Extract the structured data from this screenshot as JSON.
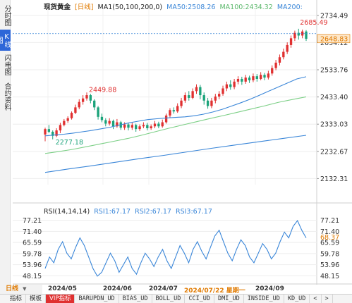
{
  "sidebar": {
    "tabs": [
      {
        "label": "分时图",
        "active": false
      },
      {
        "label": "K线图",
        "active": true
      },
      {
        "label": "闪电图",
        "active": false
      },
      {
        "label": "合约资料",
        "active": false
      }
    ]
  },
  "header": {
    "symbol": "现货黄金",
    "period": "[日线]",
    "ma_label": "MA1(50,100,200,0)",
    "ma50": "MA50:2508.26",
    "ma100": "MA100:2434.32",
    "ma200": "MA200:"
  },
  "colors": {
    "up": "#e03030",
    "down": "#1aa37a",
    "ma50": "#3a86d8",
    "ma100": "#7ccf86",
    "ma200": "#3a86d8",
    "rsi": "#3a86d8",
    "accent": "#e07a00"
  },
  "price_axis": {
    "ticks": [
      "2734.49",
      "2634.12",
      "2533.76",
      "2433.40",
      "2333.03",
      "2232.67",
      "2132.31"
    ],
    "current_price": "2648.83"
  },
  "annotations": {
    "high": "2685.49",
    "mid_high": "2449.88",
    "low": "2277.18"
  },
  "rsi": {
    "label": "RSI(14,14,14)",
    "rsi1": "RSI1:67.17",
    "rsi2": "RSI2:67.17",
    "rsi3": "RSI3:67.17",
    "ticks": [
      "77.21",
      "71.40",
      "65.59",
      "59.78",
      "53.96",
      "48.15"
    ],
    "current": "68.37"
  },
  "date_axis": {
    "labels": [
      "2024/05",
      "2024/06",
      "2024/07",
      "2024/07/22 星期一",
      "2024/09"
    ]
  },
  "period_select": "日线",
  "bottom_tabs": [
    "指标",
    "模板",
    "VIP指标",
    "BARUPDN_UD",
    "BIAS_UD",
    "BOLL_UD",
    "CCI_UD",
    "DMI_UD",
    "INSIDE_UD",
    "KD_UD",
    "<",
    ">"
  ],
  "chart_data": {
    "type": "candlestick",
    "ylim": [
      2110,
      2760
    ],
    "candles": [
      [
        2295,
        2315,
        2270,
        2320
      ],
      [
        2315,
        2305,
        2300,
        2330
      ],
      [
        2305,
        2290,
        2277,
        2310
      ],
      [
        2290,
        2310,
        2285,
        2318
      ],
      [
        2310,
        2330,
        2300,
        2338
      ],
      [
        2330,
        2345,
        2325,
        2352
      ],
      [
        2345,
        2355,
        2338,
        2362
      ],
      [
        2355,
        2375,
        2350,
        2380
      ],
      [
        2375,
        2395,
        2370,
        2405
      ],
      [
        2395,
        2415,
        2388,
        2425
      ],
      [
        2415,
        2428,
        2405,
        2440
      ],
      [
        2428,
        2440,
        2420,
        2450
      ],
      [
        2440,
        2420,
        2410,
        2445
      ],
      [
        2420,
        2395,
        2385,
        2425
      ],
      [
        2395,
        2360,
        2350,
        2400
      ],
      [
        2360,
        2348,
        2340,
        2372
      ],
      [
        2348,
        2335,
        2325,
        2355
      ],
      [
        2335,
        2345,
        2328,
        2355
      ],
      [
        2345,
        2325,
        2315,
        2350
      ],
      [
        2325,
        2340,
        2320,
        2352
      ],
      [
        2340,
        2320,
        2312,
        2345
      ],
      [
        2320,
        2332,
        2312,
        2340
      ],
      [
        2332,
        2320,
        2310,
        2338
      ],
      [
        2320,
        2330,
        2312,
        2338
      ],
      [
        2330,
        2315,
        2305,
        2335
      ],
      [
        2315,
        2325,
        2308,
        2332
      ],
      [
        2325,
        2330,
        2318,
        2340
      ],
      [
        2330,
        2318,
        2310,
        2338
      ],
      [
        2318,
        2325,
        2312,
        2332
      ],
      [
        2325,
        2335,
        2318,
        2345
      ],
      [
        2335,
        2325,
        2318,
        2342
      ],
      [
        2325,
        2340,
        2320,
        2350
      ],
      [
        2340,
        2365,
        2335,
        2372
      ],
      [
        2365,
        2385,
        2358,
        2392
      ],
      [
        2385,
        2380,
        2372,
        2395
      ],
      [
        2380,
        2400,
        2375,
        2410
      ],
      [
        2400,
        2420,
        2392,
        2430
      ],
      [
        2420,
        2440,
        2412,
        2450
      ],
      [
        2440,
        2430,
        2420,
        2455
      ],
      [
        2430,
        2455,
        2425,
        2465
      ],
      [
        2455,
        2470,
        2445,
        2480
      ],
      [
        2470,
        2440,
        2425,
        2478
      ],
      [
        2440,
        2420,
        2405,
        2450
      ],
      [
        2420,
        2400,
        2390,
        2430
      ],
      [
        2400,
        2420,
        2392,
        2430
      ],
      [
        2420,
        2435,
        2410,
        2445
      ],
      [
        2435,
        2445,
        2425,
        2455
      ],
      [
        2445,
        2465,
        2438,
        2475
      ],
      [
        2465,
        2480,
        2455,
        2490
      ],
      [
        2480,
        2470,
        2460,
        2495
      ],
      [
        2470,
        2490,
        2462,
        2500
      ],
      [
        2490,
        2500,
        2480,
        2510
      ],
      [
        2500,
        2490,
        2478,
        2508
      ],
      [
        2490,
        2505,
        2482,
        2515
      ],
      [
        2505,
        2495,
        2485,
        2512
      ],
      [
        2495,
        2510,
        2488,
        2520
      ],
      [
        2510,
        2500,
        2490,
        2518
      ],
      [
        2500,
        2515,
        2495,
        2525
      ],
      [
        2515,
        2505,
        2495,
        2522
      ],
      [
        2505,
        2520,
        2498,
        2530
      ],
      [
        2520,
        2540,
        2512,
        2550
      ],
      [
        2540,
        2560,
        2532,
        2570
      ],
      [
        2560,
        2580,
        2550,
        2590
      ],
      [
        2580,
        2600,
        2572,
        2612
      ],
      [
        2600,
        2625,
        2592,
        2635
      ],
      [
        2625,
        2650,
        2615,
        2660
      ],
      [
        2650,
        2670,
        2640,
        2678
      ],
      [
        2670,
        2660,
        2645,
        2685
      ],
      [
        2660,
        2675,
        2650,
        2682
      ],
      [
        2675,
        2648,
        2640,
        2680
      ]
    ],
    "ma50": [
      2290,
      2293,
      2296,
      2300,
      2305,
      2310,
      2316,
      2322,
      2330,
      2338,
      2344,
      2350,
      2353,
      2356,
      2358,
      2360,
      2364,
      2370,
      2378,
      2388,
      2400,
      2412,
      2425,
      2440,
      2455,
      2470,
      2485,
      2500,
      2508
    ],
    "ma100": [
      2225,
      2232,
      2240,
      2250,
      2260,
      2270,
      2280,
      2292,
      2305,
      2318,
      2330,
      2342,
      2354,
      2365,
      2377,
      2389,
      2401,
      2414,
      2424,
      2434
    ],
    "ma200": [
      2155,
      2168,
      2180,
      2193,
      2206,
      2218,
      2231,
      2244,
      2256,
      2268,
      2280,
      2292
    ],
    "rsi_values": [
      52,
      58,
      55,
      62,
      66,
      60,
      57,
      63,
      68,
      64,
      58,
      52,
      48,
      50,
      55,
      60,
      56,
      50,
      54,
      58,
      52,
      49,
      55,
      60,
      57,
      53,
      58,
      62,
      56,
      52,
      58,
      64,
      60,
      55,
      62,
      66,
      61,
      57,
      63,
      69,
      72,
      66,
      60,
      56,
      62,
      67,
      64,
      58,
      55,
      60,
      65,
      62,
      57,
      60,
      66,
      71,
      68,
      74,
      77,
      72,
      68
    ]
  }
}
